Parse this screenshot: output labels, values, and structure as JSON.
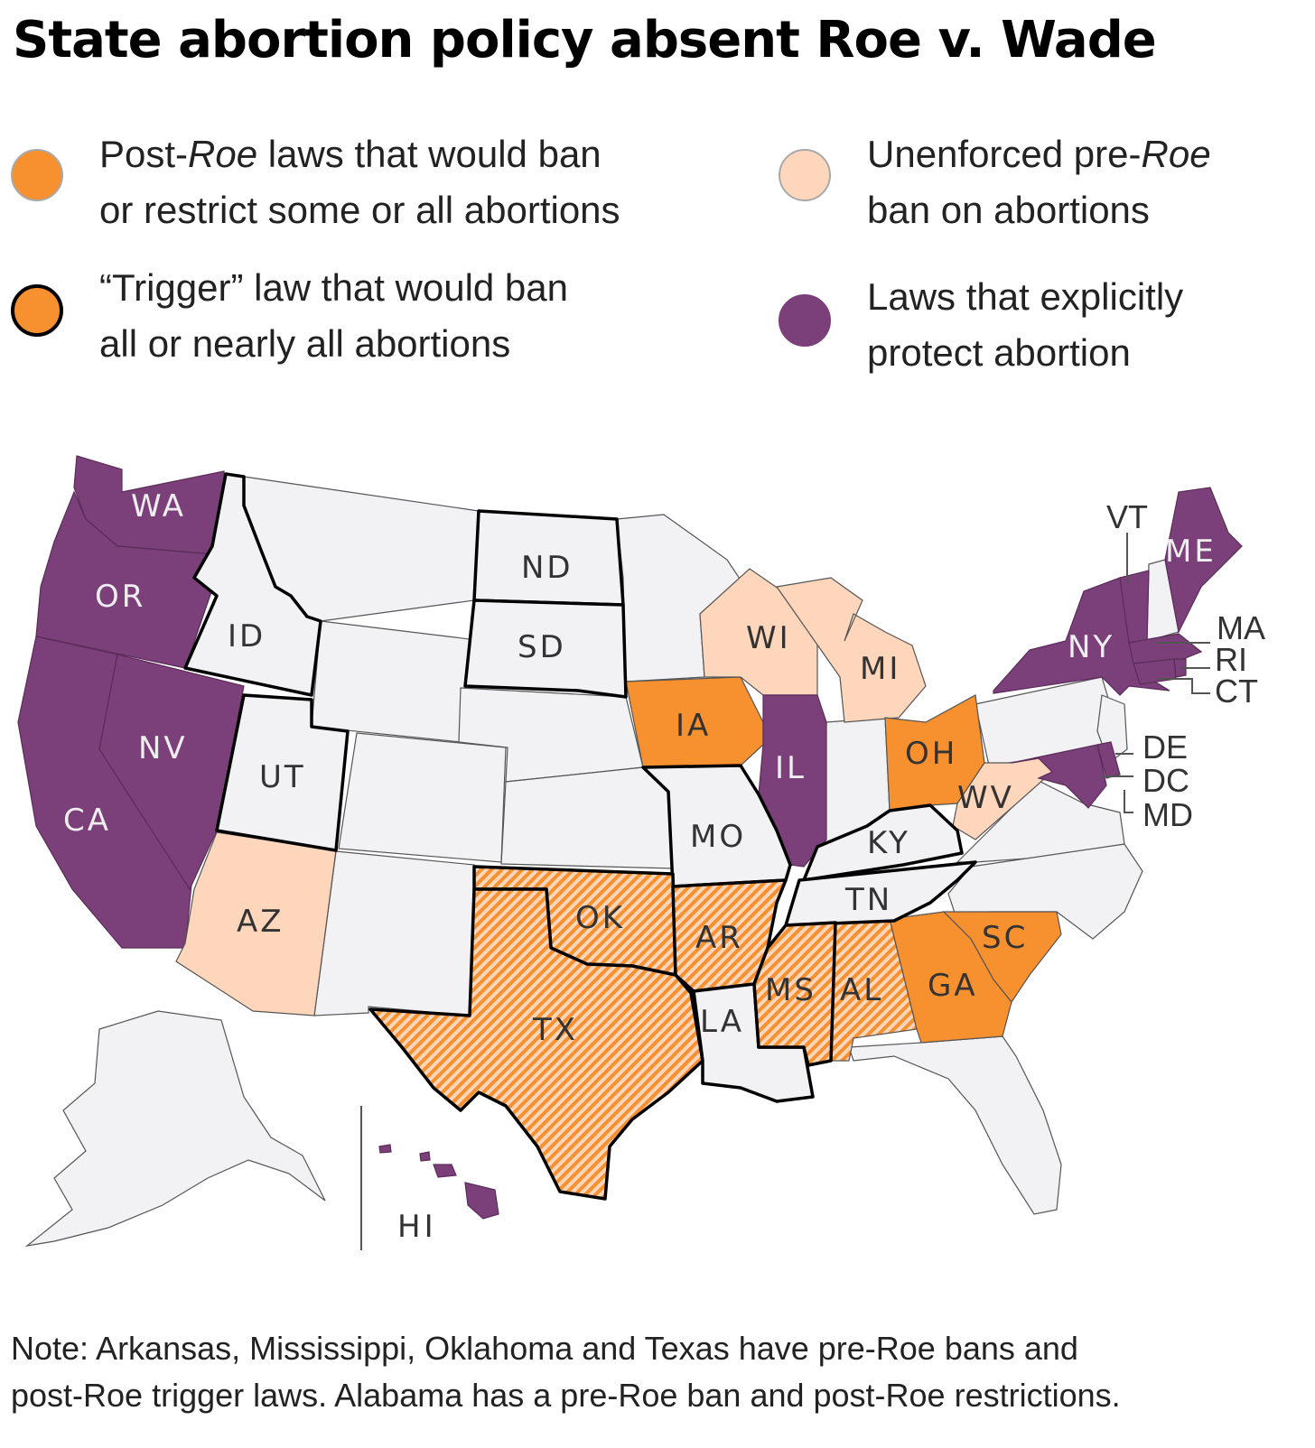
{
  "title": "State abortion policy absent Roe v. Wade",
  "legend": [
    {
      "id": "post_roe",
      "line1_a": "Post-",
      "line1_b": "Roe",
      "line1_c": " laws that would ban",
      "line2": "or restrict some or all abortions",
      "fill": "#f7902f",
      "stroke": "#a9a9a9"
    },
    {
      "id": "pre_roe",
      "line1_a": "Unenforced pre-",
      "line1_b": "Roe",
      "line1_c": "",
      "line2": "ban on abortions",
      "fill": "#fdd6bb",
      "stroke": "#a9a9a9"
    },
    {
      "id": "trigger",
      "line1_a": "“Trigger” law that would ban",
      "line1_b": "",
      "line1_c": "",
      "line2": "all or nearly all abortions",
      "fill": "#f7902f",
      "stroke": "#000000"
    },
    {
      "id": "protect",
      "line1_a": "Laws that explicitly",
      "line1_b": "",
      "line1_c": "",
      "line2": "protect abortion",
      "fill": "#7b3f7a",
      "stroke": "#7b3f7a"
    }
  ],
  "colors": {
    "post_roe": "#f7902f",
    "pre_roe": "#fdd6bb",
    "protect": "#7b3f7a",
    "none": "#f2f1f4",
    "border": "#555555",
    "trigger_border": "#000000",
    "label_dark": "#333333",
    "label_light": "#eeeeee"
  },
  "states": {
    "WA": "protect",
    "OR": "protect",
    "CA": "protect",
    "NV": "protect",
    "IL": "protect",
    "NY": "protect",
    "VT": "protect",
    "ME": "protect",
    "MA": "protect",
    "RI": "protect",
    "CT": "protect",
    "DE": "protect",
    "MD": "protect",
    "DC": "protect",
    "NJ": "protect",
    "HI": "protect",
    "ID": "trigger",
    "UT": "trigger",
    "ND": "trigger",
    "SD": "trigger",
    "MO": "trigger",
    "KY": "trigger",
    "TN": "trigger",
    "LA": "trigger",
    "TX": "trigger",
    "OK": "trigger",
    "AR": "trigger",
    "MS": "trigger",
    "IA": "post_roe",
    "OH": "post_roe",
    "GA": "post_roe",
    "SC": "post_roe",
    "AL": "post_roe",
    "WI": "pre_roe",
    "MI": "pre_roe",
    "WV": "pre_roe",
    "AZ": "pre_roe"
  },
  "hatched": [
    "TX",
    "OK",
    "AR",
    "MS",
    "AL"
  ],
  "state_labels": [
    "WA",
    "OR",
    "CA",
    "NV",
    "ID",
    "UT",
    "AZ",
    "ND",
    "SD",
    "IA",
    "MO",
    "WI",
    "MI",
    "IL",
    "OH",
    "KY",
    "TN",
    "WV",
    "AR",
    "OK",
    "TX",
    "LA",
    "MS",
    "AL",
    "GA",
    "SC",
    "NY",
    "ME",
    "VT",
    "MA",
    "RI",
    "CT",
    "DE",
    "DC",
    "MD",
    "HI"
  ],
  "note": {
    "line1": "Note: Arkansas, Mississippi, Oklahoma and Texas have pre-Roe bans and",
    "line2": "post-Roe trigger laws. Alabama has a pre-Roe ban and post-Roe restrictions."
  }
}
